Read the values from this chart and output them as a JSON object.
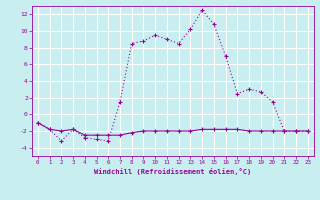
{
  "xlabel": "Windchill (Refroidissement éolien,°C)",
  "background_color": "#c8eef0",
  "grid_color": "#ffffff",
  "line_color": "#990099",
  "x_values": [
    0,
    1,
    2,
    3,
    4,
    5,
    6,
    7,
    8,
    9,
    10,
    11,
    12,
    13,
    14,
    15,
    16,
    17,
    18,
    19,
    20,
    21,
    22,
    23
  ],
  "line1_y": [
    -1.0,
    -1.8,
    -2.0,
    -1.8,
    -2.5,
    -2.5,
    -2.5,
    -2.5,
    -2.2,
    -2.0,
    -2.0,
    -2.0,
    -2.0,
    -2.0,
    -1.8,
    -1.8,
    -1.8,
    -1.8,
    -2.0,
    -2.0,
    -2.0,
    -2.0,
    -2.0,
    -2.0
  ],
  "line2_y": [
    -1.0,
    -1.8,
    -3.2,
    -1.8,
    -2.8,
    -3.0,
    -3.2,
    1.5,
    8.5,
    8.8,
    9.5,
    9.0,
    8.5,
    10.2,
    12.5,
    10.8,
    7.0,
    2.5,
    3.0,
    2.7,
    1.5,
    -2.0,
    -2.0,
    -2.0
  ],
  "ylim": [
    -5,
    13
  ],
  "xlim": [
    -0.5,
    23.5
  ],
  "yticks": [
    -4,
    -2,
    0,
    2,
    4,
    6,
    8,
    10,
    12
  ],
  "xticks": [
    0,
    1,
    2,
    3,
    4,
    5,
    6,
    7,
    8,
    9,
    10,
    11,
    12,
    13,
    14,
    15,
    16,
    17,
    18,
    19,
    20,
    21,
    22,
    23
  ]
}
